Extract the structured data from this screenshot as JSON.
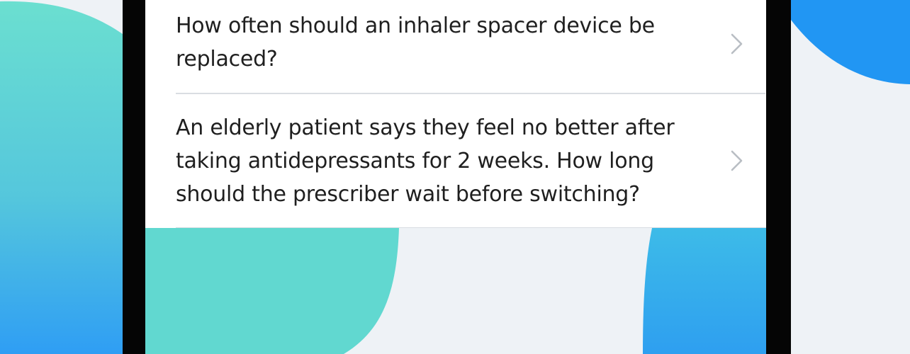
{
  "questions": [
    {
      "text": "How often should an inhaler spacer device be replaced?"
    },
    {
      "text": "An elderly patient says they feel no better after taking antidepressants for 2 weeks. How long should the prescriber wait before switching?"
    }
  ],
  "icons": {
    "chevron": "chevron-right-icon"
  },
  "colors": {
    "background": "#eef2f6",
    "device_frame": "#050505",
    "card": "#ffffff",
    "text": "#1f1f1f",
    "divider": "#d9dde2",
    "chevron": "#b9bec4",
    "teal": "#61d8d0",
    "blue": "#2f9ef4"
  }
}
